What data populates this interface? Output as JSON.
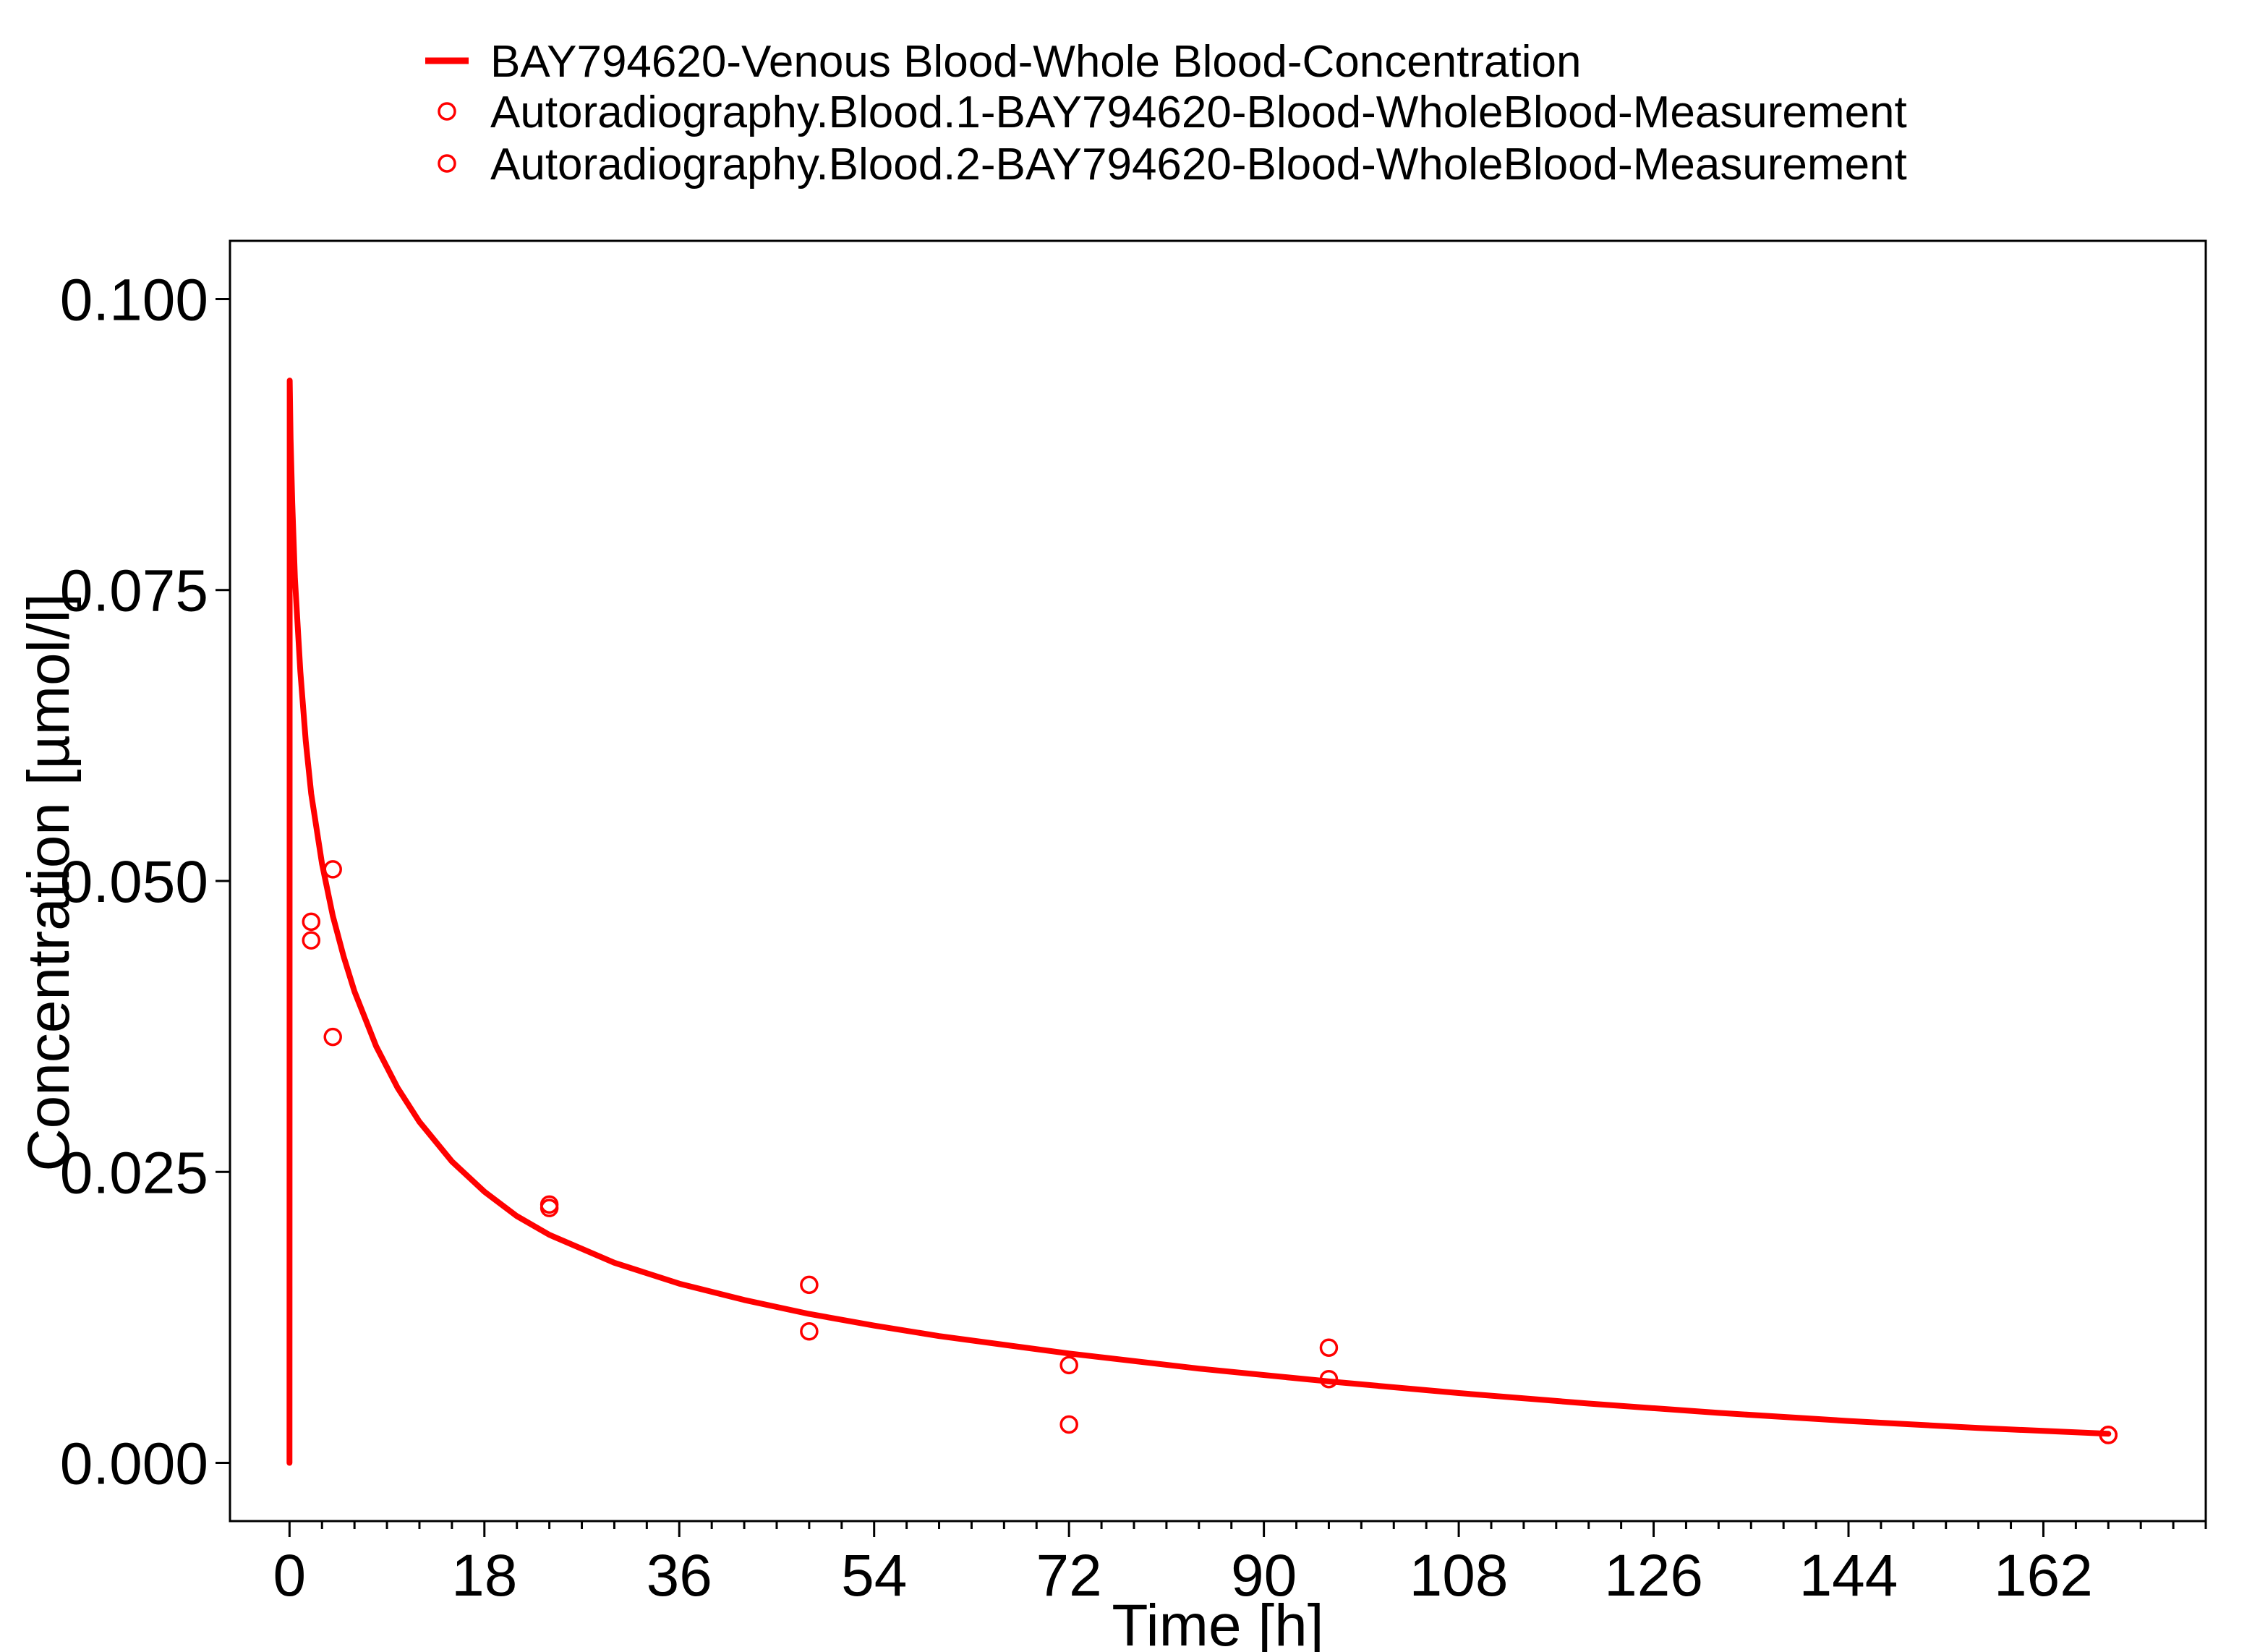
{
  "chart_data": {
    "type": "scatter",
    "title": "",
    "xlabel": "Time [h]",
    "ylabel": "Concentration [µmol/l]",
    "xlim": [
      -5.5,
      177
    ],
    "ylim": [
      -0.005,
      0.105
    ],
    "xticks": [
      0,
      18,
      36,
      54,
      72,
      90,
      108,
      126,
      144,
      162
    ],
    "xtick_labels": [
      "0",
      "18",
      "36",
      "54",
      "72",
      "90",
      "108",
      "126",
      "144",
      "162"
    ],
    "x_minor_step": 3,
    "yticks": [
      0.0,
      0.025,
      0.05,
      0.075,
      0.1
    ],
    "ytick_labels": [
      "0.000",
      "0.025",
      "0.050",
      "0.075",
      "0.100"
    ],
    "grid": false,
    "legend_position": "top",
    "colors": {
      "series": "#ff0000",
      "axis": "#000000"
    },
    "series": [
      {
        "name": "BAY794620-Venous Blood-Whole Blood-Concentration",
        "kind": "line",
        "x": [
          0,
          0.02,
          0.1,
          0.25,
          0.5,
          1,
          1.5,
          2,
          3,
          4,
          5,
          6,
          8,
          10,
          12,
          15,
          18,
          21,
          24,
          30,
          36,
          42,
          48,
          54,
          60,
          72,
          84,
          96,
          108,
          120,
          132,
          144,
          156,
          168
        ],
        "y": [
          0.0,
          0.093,
          0.088,
          0.0825,
          0.076,
          0.068,
          0.062,
          0.0575,
          0.0515,
          0.047,
          0.0435,
          0.0405,
          0.0358,
          0.0322,
          0.0293,
          0.0259,
          0.0233,
          0.0212,
          0.0196,
          0.0172,
          0.0154,
          0.014,
          0.0128,
          0.0118,
          0.0109,
          0.0094,
          0.0081,
          0.007,
          0.006,
          0.0051,
          0.0043,
          0.0036,
          0.003,
          0.0025
        ]
      },
      {
        "name": "Autoradiography.Blood.1-BAY794620-Blood-WholeBlood-Measurement",
        "kind": "scatter",
        "marker": "open-circle",
        "x": [
          2,
          4,
          24,
          48,
          72,
          96,
          168
        ],
        "y": [
          0.0465,
          0.051,
          0.0222,
          0.0153,
          0.0084,
          0.0099,
          0.0024
        ]
      },
      {
        "name": "Autoradiography.Blood.2-BAY794620-Blood-WholeBlood-Measurement",
        "kind": "scatter",
        "marker": "open-circle",
        "x": [
          2,
          4,
          24,
          48,
          72,
          96,
          168
        ],
        "y": [
          0.0449,
          0.0366,
          0.0219,
          0.0113,
          0.0033,
          0.0072,
          0.0024
        ]
      }
    ]
  }
}
